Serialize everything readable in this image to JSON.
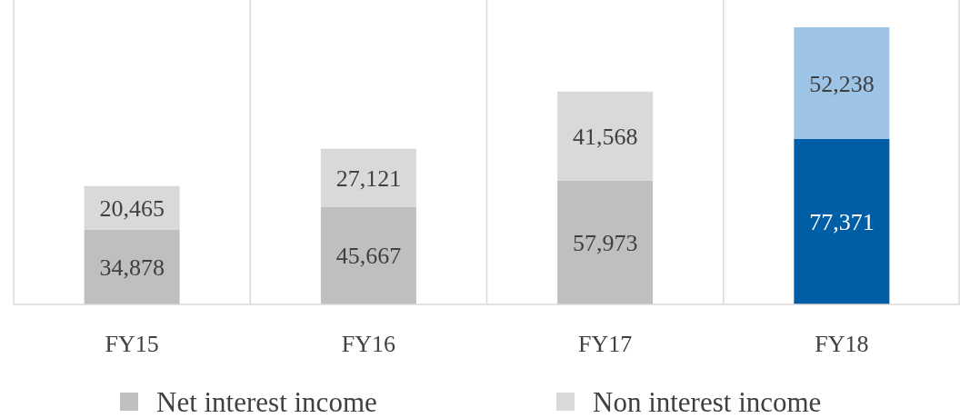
{
  "chart_data": {
    "type": "bar",
    "stacked": true,
    "categories": [
      "FY15",
      "FY16",
      "FY17",
      "FY18"
    ],
    "series": [
      {
        "name": "Net interest income",
        "color": "#bfbfbf",
        "colors": [
          "#bfbfbf",
          "#bfbfbf",
          "#bfbfbf",
          "#005ea6"
        ],
        "values": [
          34878,
          45667,
          57973,
          77371
        ],
        "value_labels": [
          "34,878",
          "45,667",
          "57,973",
          "77,371"
        ]
      },
      {
        "name": "Non interest income",
        "color": "#d9d9d9",
        "colors": [
          "#d9d9d9",
          "#d9d9d9",
          "#d9d9d9",
          "#9dc3e6"
        ],
        "values": [
          20465,
          27121,
          41568,
          52238
        ],
        "value_labels": [
          "20,465",
          "27,121",
          "41,568",
          "52,238"
        ]
      }
    ],
    "grid": "x",
    "legend": "bottom"
  }
}
